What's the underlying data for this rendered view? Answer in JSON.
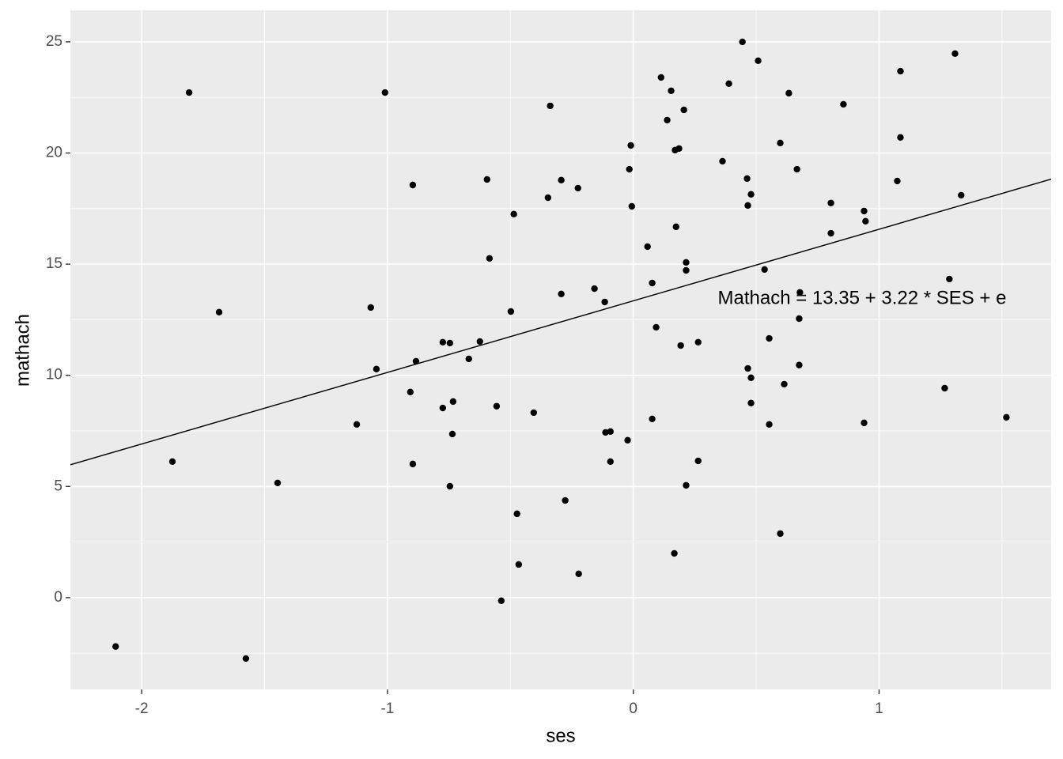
{
  "chart_data": {
    "type": "scatter",
    "x_label": "ses",
    "y_label": "mathach",
    "annotation": "Mathach = 13.35 + 3.22 * SES + e",
    "fit": {
      "intercept": 13.35,
      "slope": 3.22
    },
    "color": "#000000",
    "line_color": "#000000",
    "grid": true,
    "xlim": [
      -2.29,
      1.7
    ],
    "ylim": [
      -4.13,
      26.42
    ],
    "xticks": [
      -2,
      -1,
      0,
      1
    ],
    "yticks": [
      0,
      5,
      10,
      15,
      20,
      25
    ],
    "x": [
      -1.807,
      -2.106,
      -1.875,
      -1.685,
      -1.576,
      -1.447,
      -1.01,
      -1.068,
      -1.045,
      -1.125,
      -0.897,
      -0.907,
      -0.884,
      -0.897,
      -0.775,
      -0.746,
      -0.775,
      -0.733,
      -0.736,
      -0.746,
      -0.669,
      -0.624,
      -0.595,
      -0.585,
      -0.556,
      -0.486,
      -0.498,
      -0.473,
      -0.466,
      -0.537,
      -0.405,
      -0.338,
      -0.347,
      -0.293,
      -0.293,
      -0.225,
      -0.277,
      -0.222,
      -0.158,
      -0.116,
      -0.113,
      -0.093,
      -0.093,
      -0.023,
      -0.01,
      -0.016,
      -0.006,
      0.058,
      0.077,
      0.093,
      0.077,
      0.113,
      0.154,
      0.138,
      0.206,
      0.17,
      0.186,
      0.174,
      0.215,
      0.215,
      0.193,
      0.264,
      0.264,
      0.215,
      0.167,
      0.444,
      0.508,
      0.389,
      0.363,
      0.463,
      0.479,
      0.466,
      0.534,
      0.466,
      0.479,
      0.479,
      0.553,
      0.553,
      0.633,
      0.598,
      0.666,
      0.678,
      0.675,
      0.675,
      0.614,
      0.598,
      0.855,
      0.804,
      0.804,
      0.939,
      0.945,
      0.939,
      1.087,
      1.087,
      1.074,
      1.309,
      1.334,
      1.286,
      1.267,
      1.518
    ],
    "y": [
      22.72,
      -2.2,
      6.12,
      12.84,
      -2.74,
      5.16,
      22.72,
      13.05,
      10.28,
      7.79,
      18.56,
      9.25,
      10.63,
      6.01,
      11.49,
      11.45,
      8.53,
      8.82,
      7.36,
      5.01,
      10.74,
      11.52,
      18.81,
      15.26,
      8.61,
      17.25,
      12.87,
      3.77,
      1.49,
      -0.14,
      8.32,
      22.12,
      17.99,
      18.78,
      13.66,
      18.42,
      4.37,
      1.07,
      13.9,
      13.3,
      7.43,
      7.47,
      6.12,
      7.08,
      20.34,
      19.27,
      17.6,
      15.79,
      14.15,
      12.16,
      8.04,
      23.4,
      22.8,
      21.48,
      21.94,
      20.13,
      20.2,
      16.68,
      15.08,
      14.72,
      11.34,
      11.49,
      6.15,
      5.05,
      1.99,
      25.0,
      24.15,
      23.12,
      19.63,
      18.85,
      18.14,
      17.64,
      14.76,
      10.31,
      9.89,
      8.75,
      11.66,
      7.79,
      22.69,
      20.45,
      19.27,
      13.73,
      12.55,
      10.46,
      9.6,
      2.88,
      22.19,
      17.75,
      16.39,
      17.39,
      16.93,
      7.86,
      23.68,
      20.7,
      18.74,
      24.47,
      18.1,
      14.33,
      9.42,
      8.11
    ]
  }
}
